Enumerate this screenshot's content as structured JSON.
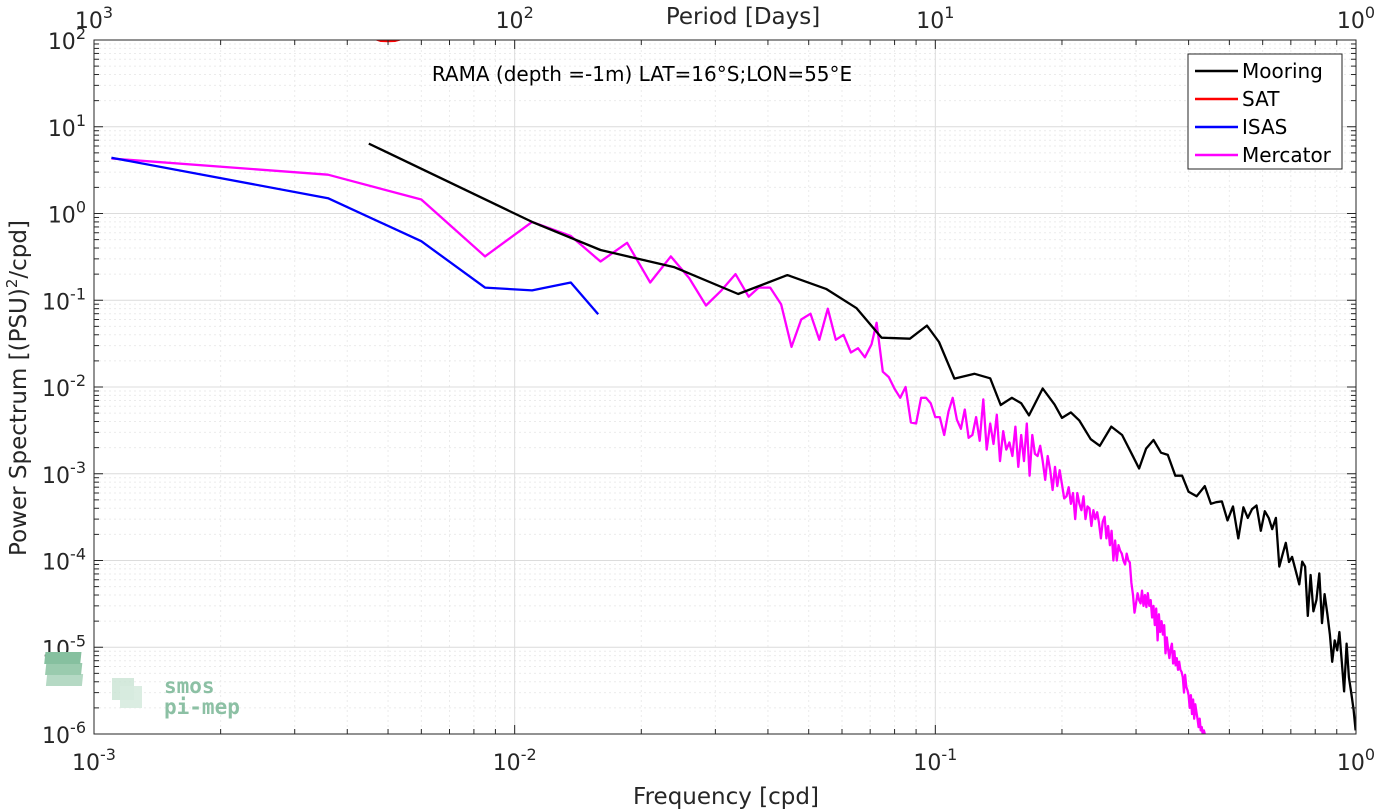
{
  "chart_data": {
    "type": "line",
    "title": "RAMA (depth =-1m) LAT=16°S;LON=55°E",
    "xlabel": "Frequency [cpd]",
    "ylabel": "Power Spectrum [(PSU)²/cpd]",
    "ylabel_main": "Power Spectrum [(PSU)",
    "ylabel_sup": "2",
    "ylabel_tail": "/cpd]",
    "top_xlabel": "Period [Days]",
    "xscale": "log",
    "yscale": "log",
    "xlim": [
      0.001,
      1
    ],
    "ylim": [
      1e-06,
      100
    ],
    "grid": true,
    "legend_position": "top-right",
    "x_ticks": [
      {
        "value": 0.001,
        "base": "10",
        "exp": "-3"
      },
      {
        "value": 0.01,
        "base": "10",
        "exp": "-2"
      },
      {
        "value": 0.1,
        "base": "10",
        "exp": "-1"
      },
      {
        "value": 1,
        "base": "10",
        "exp": "0"
      }
    ],
    "top_ticks": [
      {
        "value": 0.001,
        "base": "10",
        "exp": "3"
      },
      {
        "value": 0.01,
        "base": "10",
        "exp": "2"
      },
      {
        "value": 0.1,
        "base": "10",
        "exp": "1"
      },
      {
        "value": 1,
        "base": "10",
        "exp": "0"
      }
    ],
    "y_ticks": [
      {
        "value": 100,
        "base": "10",
        "exp": "2"
      },
      {
        "value": 10,
        "base": "10",
        "exp": "1"
      },
      {
        "value": 1,
        "base": "10",
        "exp": "0"
      },
      {
        "value": 0.1,
        "base": "10",
        "exp": "-1"
      },
      {
        "value": 0.01,
        "base": "10",
        "exp": "-2"
      },
      {
        "value": 0.001,
        "base": "10",
        "exp": "-3"
      },
      {
        "value": 0.0001,
        "base": "10",
        "exp": "-4"
      },
      {
        "value": 1e-05,
        "base": "10",
        "exp": "-5"
      },
      {
        "value": 1e-06,
        "base": "10",
        "exp": "-6"
      }
    ],
    "series": [
      {
        "name": "Mooring",
        "color": "#000000",
        "points": [
          [
            0.0045,
            6.4
          ],
          [
            0.011,
            0.8
          ],
          [
            0.016,
            0.38
          ],
          [
            0.024,
            0.24
          ],
          [
            0.034,
            0.118
          ],
          [
            0.0445,
            0.195
          ],
          [
            0.055,
            0.135
          ],
          [
            0.065,
            0.081
          ],
          [
            0.0745,
            0.037
          ],
          [
            0.087,
            0.036
          ],
          [
            0.0955,
            0.051
          ],
          [
            0.102,
            0.033
          ],
          [
            0.111,
            0.0125
          ],
          [
            0.124,
            0.0142
          ],
          [
            0.135,
            0.0126
          ],
          [
            0.143,
            0.0062
          ],
          [
            0.152,
            0.0075
          ],
          [
            0.16,
            0.0065
          ],
          [
            0.167,
            0.0047
          ],
          [
            0.18,
            0.0096
          ],
          [
            0.192,
            0.0063
          ],
          [
            0.2,
            0.0044
          ],
          [
            0.21,
            0.0051
          ],
          [
            0.22,
            0.0041
          ],
          [
            0.234,
            0.0025
          ],
          [
            0.246,
            0.0021
          ],
          [
            0.262,
            0.0035
          ],
          [
            0.278,
            0.0028
          ],
          [
            0.293,
            0.0017
          ],
          [
            0.305,
            0.00115
          ],
          [
            0.317,
            0.00195
          ],
          [
            0.33,
            0.00245
          ],
          [
            0.344,
            0.00175
          ],
          [
            0.357,
            0.00165
          ],
          [
            0.372,
            0.00095
          ],
          [
            0.386,
            0.00095
          ],
          [
            0.4,
            0.00062
          ],
          [
            0.418,
            0.00055
          ],
          [
            0.437,
            0.00072
          ],
          [
            0.452,
            0.00045
          ],
          [
            0.465,
            0.00047
          ],
          [
            0.48,
            0.00048
          ],
          [
            0.495,
            0.00029
          ],
          [
            0.51,
            0.00042
          ],
          [
            0.525,
            0.00018
          ],
          [
            0.54,
            0.00041
          ],
          [
            0.553,
            0.00031
          ],
          [
            0.566,
            0.00039
          ],
          [
            0.58,
            0.00043
          ],
          [
            0.594,
            0.00022
          ],
          [
            0.607,
            0.00037
          ],
          [
            0.62,
            0.00031
          ],
          [
            0.632,
            0.00023
          ],
          [
            0.645,
            0.00031
          ],
          [
            0.657,
            8.5e-05
          ],
          [
            0.67,
            0.00012
          ],
          [
            0.681,
            0.00016
          ],
          [
            0.693,
            9.6e-05
          ],
          [
            0.705,
            0.00011
          ],
          [
            0.72,
            7.4e-05
          ],
          [
            0.733,
            5.3e-05
          ],
          [
            0.745,
            9.7e-05
          ],
          [
            0.757,
            8.5e-05
          ],
          [
            0.768,
            2.3e-05
          ],
          [
            0.78,
            6.8e-05
          ],
          [
            0.792,
            2.6e-05
          ],
          [
            0.805,
            3.5e-05
          ],
          [
            0.818,
            7.1e-05
          ],
          [
            0.83,
            1.9e-05
          ],
          [
            0.842,
            4.1e-05
          ],
          [
            0.855,
            2.4e-05
          ],
          [
            0.867,
            1.4e-05
          ],
          [
            0.878,
            6.8e-06
          ],
          [
            0.89,
            1.2e-05
          ],
          [
            0.902,
            9.2e-06
          ],
          [
            0.913,
            1.5e-05
          ],
          [
            0.925,
            6.8e-06
          ],
          [
            0.937,
            3.1e-06
          ],
          [
            0.95,
            1.1e-05
          ],
          [
            0.962,
            4.5e-06
          ],
          [
            0.975,
            2.9e-06
          ],
          [
            0.987,
            1.9e-06
          ],
          [
            0.998,
            1.1e-06
          ]
        ]
      },
      {
        "name": "SAT",
        "color": "#ff0000",
        "points": [
          [
            0.00465,
            103
          ],
          [
            0.0048,
            98
          ],
          [
            0.005,
            97
          ],
          [
            0.0052,
            98
          ],
          [
            0.0054,
            103
          ]
        ]
      },
      {
        "name": "ISAS",
        "color": "#0000ff",
        "points": [
          [
            0.0011,
            4.4
          ],
          [
            0.0036,
            1.5
          ],
          [
            0.006,
            0.48
          ],
          [
            0.0085,
            0.14
          ],
          [
            0.011,
            0.13
          ],
          [
            0.0136,
            0.16
          ],
          [
            0.0158,
            0.069
          ]
        ]
      },
      {
        "name": "Mercator",
        "color": "#ff00ff",
        "points": [
          [
            0.0011,
            4.3
          ],
          [
            0.0036,
            2.8
          ],
          [
            0.006,
            1.45
          ],
          [
            0.0085,
            0.32
          ],
          [
            0.011,
            0.8
          ],
          [
            0.0136,
            0.55
          ],
          [
            0.016,
            0.28
          ],
          [
            0.0185,
            0.46
          ],
          [
            0.021,
            0.16
          ],
          [
            0.0235,
            0.32
          ],
          [
            0.026,
            0.18
          ],
          [
            0.0285,
            0.087
          ],
          [
            0.031,
            0.13
          ],
          [
            0.0335,
            0.2
          ],
          [
            0.036,
            0.11
          ],
          [
            0.038,
            0.14
          ],
          [
            0.0405,
            0.14
          ],
          [
            0.043,
            0.09
          ],
          [
            0.0455,
            0.029
          ],
          [
            0.048,
            0.06
          ],
          [
            0.0505,
            0.07
          ],
          [
            0.053,
            0.035
          ],
          [
            0.0555,
            0.08
          ],
          [
            0.058,
            0.035
          ],
          [
            0.0605,
            0.04
          ],
          [
            0.063,
            0.025
          ],
          [
            0.0655,
            0.028
          ],
          [
            0.068,
            0.022
          ],
          [
            0.0705,
            0.031
          ],
          [
            0.0725,
            0.055
          ],
          [
            0.075,
            0.015
          ],
          [
            0.0775,
            0.013
          ],
          [
            0.08,
            0.0095
          ],
          [
            0.0825,
            0.0075
          ],
          [
            0.085,
            0.01
          ],
          [
            0.0875,
            0.0039
          ],
          [
            0.09,
            0.0038
          ],
          [
            0.0925,
            0.0075
          ],
          [
            0.095,
            0.0075
          ],
          [
            0.0975,
            0.0065
          ],
          [
            0.1,
            0.0045
          ],
          [
            0.1025,
            0.0045
          ],
          [
            0.105,
            0.0028
          ],
          [
            0.1075,
            0.0052
          ],
          [
            0.11,
            0.0075
          ],
          [
            0.1125,
            0.0042
          ],
          [
            0.115,
            0.0033
          ],
          [
            0.1175,
            0.0055
          ],
          [
            0.12,
            0.0026
          ],
          [
            0.1225,
            0.0028
          ],
          [
            0.125,
            0.0045
          ],
          [
            0.1275,
            0.0024
          ],
          [
            0.13,
            0.0072
          ],
          [
            0.1325,
            0.0019
          ],
          [
            0.135,
            0.0038
          ],
          [
            0.1375,
            0.0022
          ],
          [
            0.14,
            0.0048
          ],
          [
            0.1425,
            0.0014
          ],
          [
            0.145,
            0.0031
          ],
          [
            0.1475,
            0.0019
          ],
          [
            0.15,
            0.0023
          ],
          [
            0.1525,
            0.0016
          ],
          [
            0.155,
            0.0035
          ],
          [
            0.1575,
            0.0012
          ],
          [
            0.16,
            0.0028
          ],
          [
            0.1625,
            0.0014
          ],
          [
            0.165,
            0.0038
          ],
          [
            0.1675,
            0.00095
          ],
          [
            0.17,
            0.0028
          ],
          [
            0.1725,
            0.0017
          ],
          [
            0.175,
            0.0016
          ],
          [
            0.1775,
            0.0021
          ],
          [
            0.18,
            0.0014
          ],
          [
            0.1825,
            0.00085
          ],
          [
            0.185,
            0.0016
          ],
          [
            0.1875,
            0.0011
          ],
          [
            0.19,
            0.00065
          ],
          [
            0.1925,
            0.0012
          ],
          [
            0.195,
            0.00072
          ],
          [
            0.1975,
            0.0011
          ],
          [
            0.2,
            0.00075
          ],
          [
            0.2025,
            0.00052
          ],
          [
            0.205,
            0.00055
          ],
          [
            0.2075,
            0.0007
          ],
          [
            0.21,
            0.00045
          ],
          [
            0.2125,
            0.0006
          ],
          [
            0.215,
            0.0003
          ],
          [
            0.2175,
            0.0006
          ],
          [
            0.22,
            0.00045
          ],
          [
            0.2225,
            0.00038
          ],
          [
            0.225,
            0.00055
          ],
          [
            0.2275,
            0.0003
          ],
          [
            0.23,
            0.00042
          ],
          [
            0.2325,
            0.0004
          ],
          [
            0.235,
            0.00025
          ],
          [
            0.2375,
            0.00038
          ],
          [
            0.24,
            0.0003
          ],
          [
            0.2425,
            0.00036
          ],
          [
            0.245,
            0.00027
          ],
          [
            0.2475,
            0.00018
          ],
          [
            0.25,
            0.00028
          ],
          [
            0.2525,
            0.00032
          ],
          [
            0.255,
            0.00018
          ],
          [
            0.2575,
            0.00025
          ],
          [
            0.26,
            0.00015
          ],
          [
            0.2625,
            0.00022
          ],
          [
            0.265,
            0.0001
          ],
          [
            0.2675,
            0.00017
          ],
          [
            0.27,
            0.0001
          ],
          [
            0.2725,
            0.00015
          ],
          [
            0.275,
            0.00013
          ],
          [
            0.2775,
            0.00012
          ],
          [
            0.28,
            0.0001
          ],
          [
            0.2825,
            9e-05
          ],
          [
            0.285,
            0.00012
          ],
          [
            0.2875,
            0.0001
          ],
          [
            0.29,
            9.5e-05
          ],
          [
            0.2925,
            5.5e-05
          ],
          [
            0.295,
            4e-05
          ],
          [
            0.2975,
            2.5e-05
          ],
          [
            0.3,
            3.2e-05
          ],
          [
            0.3025,
            4.2e-05
          ],
          [
            0.305,
            3.5e-05
          ],
          [
            0.3075,
            3.2e-05
          ],
          [
            0.31,
            4.5e-05
          ],
          [
            0.3125,
            3e-05
          ],
          [
            0.315,
            4e-05
          ],
          [
            0.3175,
            2.9e-05
          ],
          [
            0.32,
            4.2e-05
          ],
          [
            0.3225,
            3e-05
          ],
          [
            0.325,
            3.5e-05
          ],
          [
            0.3275,
            2.2e-05
          ],
          [
            0.33,
            3e-05
          ],
          [
            0.3325,
            1.8e-05
          ],
          [
            0.335,
            2.8e-05
          ],
          [
            0.3375,
            1.2e-05
          ],
          [
            0.34,
            2.4e-05
          ],
          [
            0.3425,
            1.5e-05
          ],
          [
            0.345,
            2e-05
          ],
          [
            0.3475,
            1.4e-05
          ],
          [
            0.35,
            1.8e-05
          ],
          [
            0.3525,
            8.5e-06
          ],
          [
            0.355,
            1.3e-05
          ],
          [
            0.3575,
            9.5e-06
          ],
          [
            0.36,
            7.5e-06
          ],
          [
            0.3625,
            9.5e-06
          ],
          [
            0.365,
            1.1e-05
          ],
          [
            0.3675,
            6.5e-06
          ],
          [
            0.37,
            9e-06
          ],
          [
            0.3725,
            6.2e-06
          ],
          [
            0.375,
            7.5e-06
          ],
          [
            0.3775,
            5.5e-06
          ],
          [
            0.38,
            6.8e-06
          ],
          [
            0.3825,
            5.5e-06
          ],
          [
            0.385,
            5.2e-06
          ],
          [
            0.3875,
            4.5e-06
          ],
          [
            0.39,
            3e-06
          ],
          [
            0.3925,
            4.8e-06
          ],
          [
            0.395,
            3.5e-06
          ],
          [
            0.3975,
            3.2e-06
          ],
          [
            0.4,
            2.8e-06
          ],
          [
            0.4025,
            2e-06
          ],
          [
            0.405,
            2.8e-06
          ],
          [
            0.4075,
            1.7e-06
          ],
          [
            0.41,
            2.5e-06
          ],
          [
            0.4125,
            1.5e-06
          ],
          [
            0.415,
            2.2e-06
          ],
          [
            0.4175,
            1.8e-06
          ],
          [
            0.42,
            1.5e-06
          ],
          [
            0.4225,
            1.2e-06
          ],
          [
            0.425,
            1.5e-06
          ],
          [
            0.4275,
            1.1e-06
          ],
          [
            0.43,
            1.2e-06
          ],
          [
            0.4325,
            9.5e-07
          ],
          [
            0.435,
            1.1e-06
          ],
          [
            0.4375,
            9.8e-07
          ]
        ]
      }
    ]
  },
  "watermark": {
    "line1": "smos",
    "line2": "pi-mep"
  }
}
